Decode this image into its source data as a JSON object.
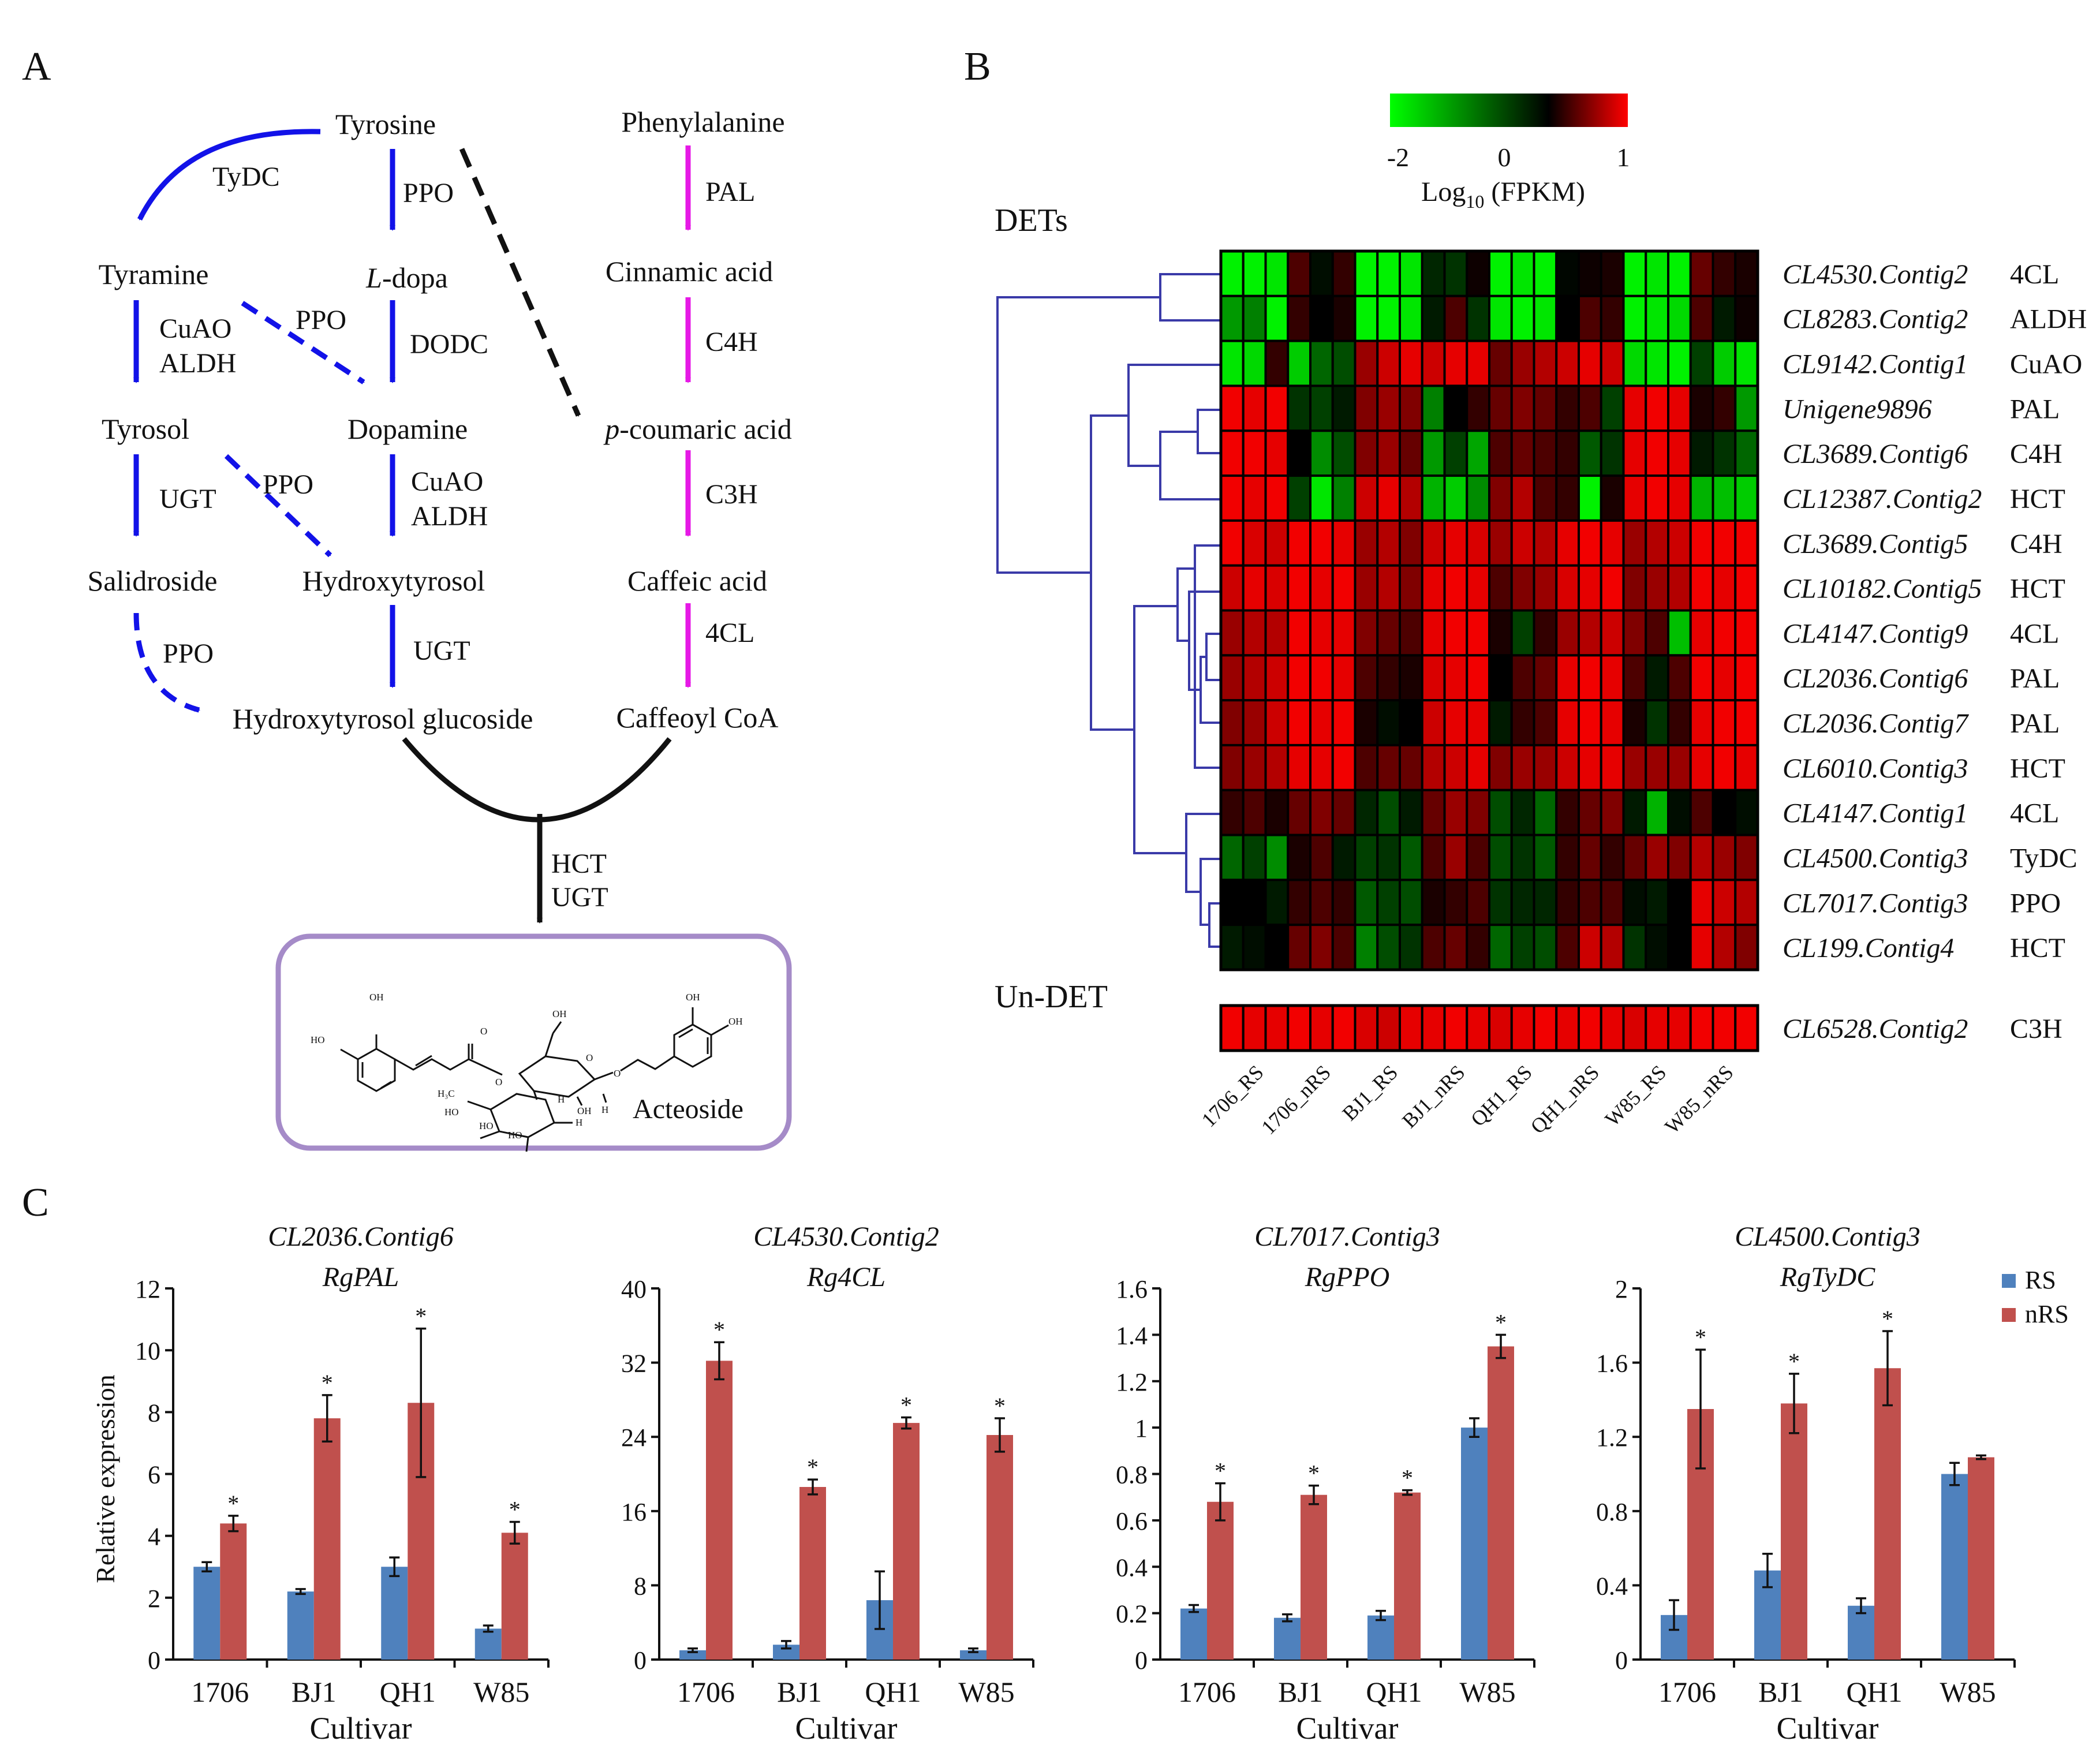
{
  "panel_labels": {
    "a": "A",
    "b": "B",
    "c": "C"
  },
  "colors": {
    "blue_path": "#1212e8",
    "pink_path": "#e619e6",
    "dendro": "#3a3aa8",
    "box": "#a58bc8",
    "rs": "#4f81bd",
    "nrs": "#c0504d"
  },
  "pathway": {
    "nodes": {
      "tyrosine": "Tyrosine",
      "tyramine": "Tyramine",
      "ldopa_l": "L",
      "ldopa_rest": "-dopa",
      "tyrosol": "Tyrosol",
      "dopamine": "Dopamine",
      "salidroside": "Salidroside",
      "hydroxytyrosol": "Hydroxytyrosol",
      "hydroxytyrosol_glucoside": "Hydroxytyrosol glucoside",
      "phenylalanine": "Phenylalanine",
      "cinnamic": "Cinnamic acid",
      "pcoum_p": "p",
      "pcoum_rest": "-coumaric acid",
      "caffeic": "Caffeic acid",
      "caffeoyl": "Caffeoyl CoA",
      "acteoside": "Acteoside"
    },
    "enzymes": {
      "tydc": "TyDC",
      "ppo1": "PPO",
      "cuao1": "CuAO",
      "aldh1": "ALDH",
      "ppo2": "PPO",
      "dodc": "DODC",
      "ugt1": "UGT",
      "ppo3": "PPO",
      "cuao2": "CuAO",
      "aldh2": "ALDH",
      "ppo4": "PPO",
      "ugt2": "UGT",
      "pal": "PAL",
      "c4h": "C4H",
      "c3h": "C3H",
      "fourcl": "4CL",
      "hct": "HCT",
      "ugt3": "UGT"
    },
    "structure_labels": {
      "oh": "OH",
      "ho": "HO",
      "o": "O",
      "h": "H",
      "h3c": "H₃C"
    }
  },
  "heatmap": {
    "colorbar": {
      "min": "-2",
      "mid": "0",
      "max": "1",
      "title_main": "Log",
      "title_sub": "10",
      "title_rest": " (FPKM)"
    },
    "section_dets": "DETs",
    "section_undet": "Un-DET",
    "sample_labels": [
      "1706_RS",
      "1706_nRS",
      "BJ1_RS",
      "BJ1_nRS",
      "QH1_RS",
      "QH1_nRS",
      "W85_RS",
      "W85_nRS"
    ],
    "rows": [
      {
        "gene": "CL4530.Contig2",
        "enzyme": "4CL",
        "values": [
          -1.9,
          -1.9,
          -1.8,
          0.3,
          -0.1,
          0.2,
          -1.9,
          -1.9,
          -1.8,
          -0.3,
          -0.4,
          0.05,
          -1.9,
          -1.8,
          -1.9,
          -0.05,
          0.05,
          0.1,
          -1.9,
          -1.8,
          -1.9,
          0.4,
          0.2,
          0.1
        ]
      },
      {
        "gene": "CL8283.Contig2",
        "enzyme": "ALDH",
        "values": [
          -1.2,
          -1.0,
          -1.9,
          0.2,
          0.0,
          0.1,
          -1.9,
          -1.9,
          -1.8,
          -0.2,
          0.3,
          -0.4,
          -1.8,
          -1.9,
          -1.8,
          0.0,
          0.3,
          0.2,
          -1.9,
          -1.8,
          -1.7,
          0.3,
          -0.2,
          0.05
        ]
      },
      {
        "gene": "CL9142.Contig1",
        "enzyme": "CuAO",
        "values": [
          -1.8,
          -1.7,
          0.2,
          -1.6,
          -0.8,
          -0.6,
          0.6,
          0.8,
          0.9,
          0.8,
          0.9,
          0.9,
          0.4,
          0.6,
          0.7,
          0.8,
          0.9,
          0.8,
          -1.7,
          -1.8,
          -1.9,
          -0.5,
          -1.6,
          -1.8
        ]
      },
      {
        "gene": "Unigene9896",
        "enzyme": "PAL",
        "values": [
          0.95,
          0.9,
          0.95,
          -0.4,
          -0.5,
          -0.2,
          0.5,
          0.6,
          0.5,
          -1.0,
          0.0,
          0.2,
          0.4,
          0.5,
          0.4,
          0.2,
          0.3,
          -0.5,
          0.9,
          0.95,
          0.9,
          0.1,
          0.2,
          -1.2
        ]
      },
      {
        "gene": "CL3689.Contig6",
        "enzyme": "C4H",
        "values": [
          0.95,
          0.95,
          0.9,
          0.0,
          -1.1,
          -0.6,
          0.5,
          0.6,
          0.4,
          -1.2,
          -0.5,
          -1.3,
          0.3,
          0.4,
          0.3,
          0.2,
          -0.7,
          -0.4,
          0.9,
          0.95,
          0.9,
          -0.2,
          -0.4,
          -0.8
        ]
      },
      {
        "gene": "CL12387.Contig2",
        "enzyme": "HCT",
        "values": [
          0.95,
          0.9,
          0.95,
          -0.5,
          -1.8,
          -1.0,
          0.8,
          0.9,
          0.7,
          -1.4,
          -1.6,
          -1.1,
          0.5,
          0.7,
          0.3,
          0.2,
          -1.9,
          0.1,
          0.9,
          0.95,
          0.9,
          -1.4,
          -1.5,
          -1.6
        ]
      },
      {
        "gene": "CL3689.Contig5",
        "enzyme": "C4H",
        "values": [
          0.95,
          0.85,
          0.8,
          0.95,
          0.95,
          0.9,
          0.6,
          0.7,
          0.5,
          0.8,
          0.9,
          0.85,
          0.6,
          0.8,
          0.7,
          0.9,
          0.95,
          0.9,
          0.6,
          0.7,
          0.8,
          0.95,
          0.95,
          0.95
        ]
      },
      {
        "gene": "CL10182.Contig5",
        "enzyme": "HCT",
        "values": [
          0.8,
          0.9,
          0.85,
          0.95,
          0.9,
          0.95,
          0.6,
          0.7,
          0.5,
          0.9,
          0.95,
          0.9,
          0.3,
          0.5,
          0.6,
          0.85,
          0.9,
          0.95,
          0.5,
          0.6,
          0.7,
          0.95,
          0.9,
          0.95
        ]
      },
      {
        "gene": "CL4147.Contig9",
        "enzyme": "4CL",
        "values": [
          0.6,
          0.7,
          0.7,
          0.95,
          0.9,
          0.9,
          0.5,
          0.4,
          0.3,
          0.9,
          0.95,
          0.95,
          0.1,
          -0.5,
          0.2,
          0.6,
          0.7,
          0.8,
          0.5,
          0.3,
          -1.5,
          0.9,
          0.95,
          0.95
        ]
      },
      {
        "gene": "CL2036.Contig6",
        "enzyme": "PAL",
        "values": [
          0.6,
          0.7,
          0.8,
          0.95,
          0.95,
          0.9,
          0.3,
          0.2,
          0.1,
          0.85,
          0.9,
          0.95,
          0.0,
          0.3,
          0.4,
          0.9,
          0.95,
          0.9,
          0.3,
          -0.2,
          0.3,
          0.95,
          0.9,
          0.95
        ]
      },
      {
        "gene": "CL2036.Contig7",
        "enzyme": "PAL",
        "values": [
          0.5,
          0.6,
          0.8,
          0.95,
          0.9,
          0.95,
          0.1,
          -0.1,
          0.0,
          0.8,
          0.9,
          0.9,
          -0.2,
          0.2,
          0.3,
          0.9,
          0.95,
          0.9,
          0.1,
          -0.4,
          0.2,
          0.9,
          0.95,
          0.95
        ]
      },
      {
        "gene": "CL6010.Contig3",
        "enzyme": "HCT",
        "values": [
          0.5,
          0.6,
          0.7,
          0.9,
          0.9,
          0.95,
          0.3,
          0.4,
          0.4,
          0.7,
          0.8,
          0.9,
          0.5,
          0.6,
          0.6,
          0.8,
          0.9,
          0.9,
          0.6,
          0.6,
          0.6,
          0.9,
          0.95,
          0.9
        ]
      },
      {
        "gene": "CL4147.Contig1",
        "enzyme": "4CL",
        "values": [
          0.2,
          0.3,
          0.1,
          0.4,
          0.5,
          0.4,
          -0.3,
          -0.6,
          -0.2,
          0.4,
          0.6,
          0.5,
          -0.6,
          -0.3,
          -0.8,
          0.2,
          0.4,
          0.5,
          -0.2,
          -1.4,
          -0.1,
          0.3,
          0.0,
          -0.1
        ]
      },
      {
        "gene": "CL4500.Contig3",
        "enzyme": "TyDC",
        "values": [
          -0.8,
          -0.5,
          -1.1,
          0.1,
          0.3,
          -0.2,
          -0.5,
          -0.4,
          -0.7,
          0.3,
          0.6,
          0.3,
          -0.6,
          -0.4,
          -0.7,
          0.2,
          0.4,
          0.2,
          0.4,
          0.6,
          0.5,
          0.7,
          0.6,
          0.5
        ]
      },
      {
        "gene": "CL7017.Contig3",
        "enzyme": "PPO",
        "values": [
          0.0,
          0.0,
          -0.2,
          0.2,
          0.3,
          0.2,
          -0.7,
          -0.5,
          -0.6,
          0.1,
          0.2,
          0.3,
          -0.4,
          -0.3,
          -0.3,
          0.2,
          0.3,
          0.3,
          -0.1,
          -0.2,
          0.0,
          0.9,
          0.8,
          0.7
        ]
      },
      {
        "gene": "CL199.Contig4",
        "enzyme": "HCT",
        "values": [
          -0.2,
          -0.1,
          0.0,
          0.4,
          0.5,
          0.3,
          -1.0,
          -0.6,
          -0.4,
          0.3,
          0.4,
          0.2,
          -0.8,
          -0.5,
          -0.6,
          0.3,
          0.8,
          0.7,
          -0.4,
          -0.1,
          0.0,
          0.9,
          0.7,
          0.5
        ]
      }
    ],
    "undet": {
      "gene": "CL6528.Contig2",
      "enzyme": "C3H",
      "values": [
        0.95,
        0.9,
        0.9,
        0.95,
        0.9,
        0.95,
        0.85,
        0.8,
        0.9,
        0.9,
        0.95,
        0.9,
        0.85,
        0.9,
        0.95,
        0.9,
        0.95,
        0.9,
        0.85,
        0.9,
        0.9,
        0.95,
        0.95,
        0.95
      ]
    }
  },
  "bar_panel": {
    "ylabel": "Relative expression",
    "xlabel": "Cultivar",
    "legend": {
      "rs": "RS",
      "nrs": "nRS"
    },
    "significance_marker": "*"
  },
  "chart_data": [
    {
      "type": "bar",
      "title": "CL2036.Contig6",
      "subtitle": "RgPAL",
      "categories": [
        "1706",
        "BJ1",
        "QH1",
        "W85"
      ],
      "ylim": [
        0,
        12
      ],
      "yticks": [
        "0",
        "2",
        "4",
        "6",
        "8",
        "10",
        "12"
      ],
      "ytick_values": [
        0,
        2,
        4,
        6,
        8,
        10,
        12
      ],
      "xlabel": "Cultivar",
      "ylabel": "Relative expression",
      "series": [
        {
          "name": "RS",
          "values": [
            3.0,
            2.2,
            3.0,
            1.0
          ],
          "errors": [
            0.15,
            0.08,
            0.3,
            0.1
          ]
        },
        {
          "name": "nRS",
          "values": [
            4.4,
            7.8,
            8.3,
            4.1
          ],
          "errors": [
            0.25,
            0.75,
            2.4,
            0.35
          ]
        }
      ],
      "significant": [
        true,
        true,
        true,
        true
      ]
    },
    {
      "type": "bar",
      "title": "CL4530.Contig2",
      "subtitle": "Rg4CL",
      "categories": [
        "1706",
        "BJ1",
        "QH1",
        "W85"
      ],
      "ylim": [
        0,
        40
      ],
      "yticks": [
        "0",
        "8",
        "16",
        "24",
        "32",
        "40"
      ],
      "ytick_values": [
        0,
        8,
        16,
        24,
        32,
        40
      ],
      "xlabel": "Cultivar",
      "series": [
        {
          "name": "RS",
          "values": [
            1.0,
            1.6,
            6.4,
            1.0
          ],
          "errors": [
            0.2,
            0.4,
            3.1,
            0.2
          ]
        },
        {
          "name": "nRS",
          "values": [
            32.2,
            18.6,
            25.5,
            24.2
          ],
          "errors": [
            2.0,
            0.8,
            0.6,
            1.8
          ]
        }
      ],
      "significant": [
        true,
        true,
        true,
        true
      ]
    },
    {
      "type": "bar",
      "title": "CL7017.Contig3",
      "subtitle": "RgPPO",
      "categories": [
        "1706",
        "BJ1",
        "QH1",
        "W85"
      ],
      "ylim": [
        0,
        1.6
      ],
      "yticks": [
        "0",
        "0.2",
        "0.4",
        "0.6",
        "0.8",
        "1",
        "1.2",
        "1.4",
        "1.6"
      ],
      "ytick_values": [
        0,
        0.2,
        0.4,
        0.6,
        0.8,
        1.0,
        1.2,
        1.4,
        1.6
      ],
      "xlabel": "Cultivar",
      "series": [
        {
          "name": "RS",
          "values": [
            0.22,
            0.18,
            0.19,
            1.0
          ],
          "errors": [
            0.015,
            0.015,
            0.02,
            0.04
          ]
        },
        {
          "name": "nRS",
          "values": [
            0.68,
            0.71,
            0.72,
            1.35
          ],
          "errors": [
            0.08,
            0.04,
            0.01,
            0.05
          ]
        }
      ],
      "significant": [
        true,
        true,
        true,
        true
      ]
    },
    {
      "type": "bar",
      "title": "CL4500.Contig3",
      "subtitle": "RgTyDC",
      "categories": [
        "1706",
        "BJ1",
        "QH1",
        "W85"
      ],
      "ylim": [
        0,
        2
      ],
      "yticks": [
        "0",
        "0.4",
        "0.8",
        "1.2",
        "1.6",
        "2"
      ],
      "ytick_values": [
        0,
        0.4,
        0.8,
        1.2,
        1.6,
        2.0
      ],
      "xlabel": "Cultivar",
      "series": [
        {
          "name": "RS",
          "values": [
            0.24,
            0.48,
            0.29,
            1.0
          ],
          "errors": [
            0.08,
            0.09,
            0.04,
            0.06
          ]
        },
        {
          "name": "nRS",
          "values": [
            1.35,
            1.38,
            1.57,
            1.09
          ],
          "errors": [
            0.32,
            0.16,
            0.2,
            0.01
          ]
        }
      ],
      "significant": [
        true,
        true,
        true,
        false
      ]
    }
  ]
}
